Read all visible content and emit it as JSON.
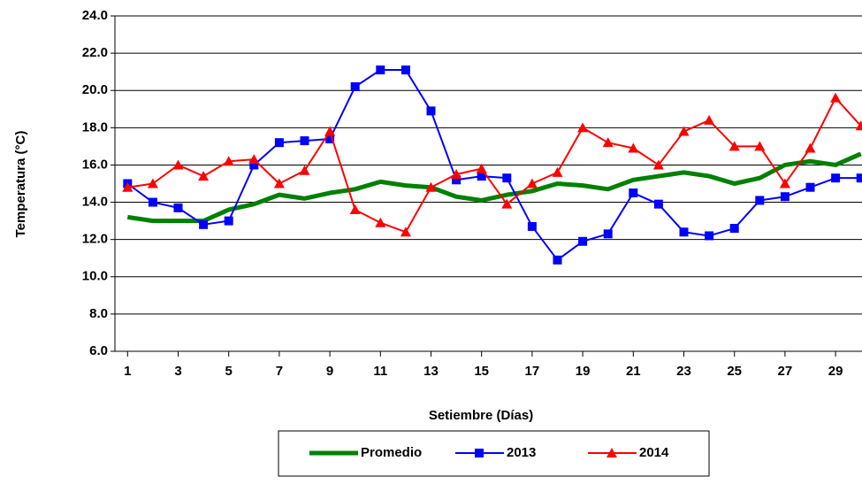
{
  "chart_data": {
    "type": "line",
    "x_label": "Setiembre (Días)",
    "y_label": "Temperatura (°C)",
    "x": [
      1,
      2,
      3,
      4,
      5,
      6,
      7,
      8,
      9,
      10,
      11,
      12,
      13,
      14,
      15,
      16,
      17,
      18,
      19,
      20,
      21,
      22,
      23,
      24,
      25,
      26,
      27,
      28,
      29,
      30
    ],
    "xlim": [
      0.5,
      30.5
    ],
    "xticks": [
      1,
      3,
      5,
      7,
      9,
      11,
      13,
      15,
      17,
      19,
      21,
      23,
      25,
      27,
      29
    ],
    "ylim": [
      6,
      24
    ],
    "yticks": [
      {
        "value": 6,
        "label": "6.0"
      },
      {
        "value": 8,
        "label": "8.0"
      },
      {
        "value": 10,
        "label": "10.0"
      },
      {
        "value": 12,
        "label": "12.0"
      },
      {
        "value": 14,
        "label": "14.0"
      },
      {
        "value": 16,
        "label": "16.0"
      },
      {
        "value": 18,
        "label": "18.0"
      },
      {
        "value": 20,
        "label": "20.0"
      },
      {
        "value": 22,
        "label": "22.0"
      },
      {
        "value": 24,
        "label": "24.0"
      }
    ],
    "grid": true,
    "legend": "bottom",
    "series": [
      {
        "name": "Promedio",
        "color": "#008000",
        "marker": "none",
        "values": [
          13.2,
          13.0,
          13.0,
          13.0,
          13.6,
          13.9,
          14.4,
          14.2,
          14.5,
          14.7,
          15.1,
          14.9,
          14.8,
          14.3,
          14.1,
          14.4,
          14.6,
          15.0,
          14.9,
          14.7,
          15.2,
          15.4,
          15.6,
          15.4,
          15.0,
          15.3,
          16.0,
          16.2,
          16.0,
          16.6
        ]
      },
      {
        "name": "2013",
        "color": "#0000ff",
        "marker": "square",
        "values": [
          15.0,
          14.0,
          13.7,
          12.8,
          13.0,
          16.0,
          17.2,
          17.3,
          17.4,
          20.2,
          21.1,
          21.1,
          18.9,
          15.2,
          15.4,
          15.3,
          12.7,
          10.9,
          11.9,
          12.3,
          14.5,
          13.9,
          12.4,
          12.2,
          12.6,
          14.1,
          14.3,
          14.8,
          15.3,
          15.3
        ]
      },
      {
        "name": "2014",
        "color": "#ff0000",
        "marker": "triangle",
        "values": [
          14.8,
          15.0,
          16.0,
          15.4,
          16.2,
          16.3,
          15.0,
          15.7,
          17.8,
          13.6,
          12.9,
          12.4,
          14.8,
          15.5,
          15.8,
          13.9,
          15.0,
          15.6,
          18.0,
          17.2,
          16.9,
          16.0,
          17.8,
          18.4,
          17.0,
          17.0,
          15.0,
          16.9,
          19.6,
          18.1
        ]
      }
    ]
  }
}
